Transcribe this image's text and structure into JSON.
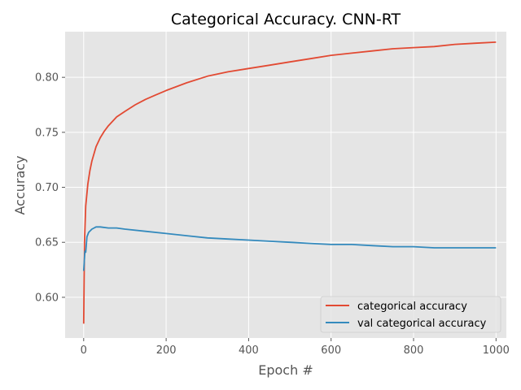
{
  "chart_data": {
    "type": "line",
    "title": "Categorical Accuracy. CNN-RT",
    "xlabel": "Epoch #",
    "ylabel": "Accuracy",
    "xlim": [
      -45,
      1025
    ],
    "ylim": [
      0.563,
      0.8415
    ],
    "xticks": [
      0,
      200,
      400,
      600,
      800,
      1000
    ],
    "yticks": [
      0.6,
      0.65,
      0.7,
      0.75,
      0.8
    ],
    "xtick_labels": [
      "0",
      "200",
      "400",
      "600",
      "800",
      "1000"
    ],
    "ytick_labels": [
      "0.60",
      "0.65",
      "0.70",
      "0.75",
      "0.80"
    ],
    "grid": true,
    "legend_position": "lower-right",
    "background_color": "#e5e5e5",
    "series": [
      {
        "name": "categorical accuracy",
        "color": "#e24a33",
        "x": [
          0,
          2,
          5,
          10,
          15,
          20,
          30,
          40,
          50,
          60,
          80,
          100,
          125,
          150,
          175,
          200,
          250,
          300,
          350,
          400,
          450,
          500,
          550,
          600,
          650,
          700,
          750,
          800,
          850,
          900,
          950,
          1000
        ],
        "values": [
          0.576,
          0.65,
          0.683,
          0.703,
          0.715,
          0.724,
          0.737,
          0.745,
          0.751,
          0.756,
          0.764,
          0.769,
          0.775,
          0.78,
          0.784,
          0.788,
          0.795,
          0.801,
          0.805,
          0.808,
          0.811,
          0.814,
          0.817,
          0.82,
          0.822,
          0.824,
          0.826,
          0.827,
          0.828,
          0.83,
          0.831,
          0.832
        ]
      },
      {
        "name": "val categorical accuracy",
        "color": "#348abd",
        "x": [
          0,
          3,
          5,
          8,
          12,
          20,
          30,
          40,
          60,
          80,
          100,
          150,
          200,
          250,
          300,
          350,
          400,
          450,
          500,
          550,
          600,
          650,
          700,
          750,
          800,
          850,
          900,
          950,
          1000
        ],
        "values": [
          0.624,
          0.642,
          0.641,
          0.655,
          0.659,
          0.662,
          0.664,
          0.664,
          0.663,
          0.663,
          0.662,
          0.66,
          0.658,
          0.656,
          0.654,
          0.653,
          0.652,
          0.651,
          0.65,
          0.649,
          0.648,
          0.648,
          0.647,
          0.646,
          0.646,
          0.645,
          0.645,
          0.645,
          0.645
        ]
      }
    ]
  }
}
